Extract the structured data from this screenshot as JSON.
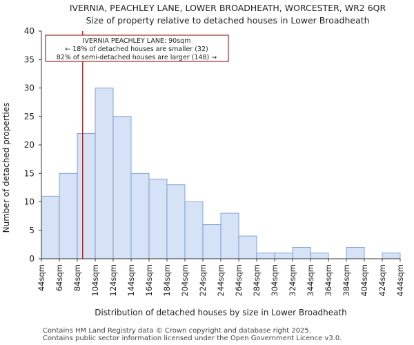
{
  "chart_data": {
    "type": "bar",
    "title": "IVERNIA, PEACHLEY LANE, LOWER BROADHEATH, WORCESTER, WR2 6QR",
    "subtitle": "Size of property relative to detached houses in Lower Broadheath",
    "xlabel": "Distribution of detached houses by size in Lower Broadheath",
    "ylabel": "Number of detached properties",
    "bin_edges": [
      44,
      64,
      84,
      104,
      124,
      144,
      164,
      184,
      204,
      224,
      244,
      264,
      284,
      304,
      324,
      344,
      364,
      384,
      404,
      424,
      444
    ],
    "tick_labels": [
      "44sqm",
      "64sqm",
      "84sqm",
      "104sqm",
      "124sqm",
      "144sqm",
      "164sqm",
      "184sqm",
      "204sqm",
      "224sqm",
      "244sqm",
      "264sqm",
      "284sqm",
      "304sqm",
      "324sqm",
      "344sqm",
      "364sqm",
      "384sqm",
      "404sqm",
      "424sqm",
      "444sqm"
    ],
    "values": [
      11,
      15,
      22,
      30,
      25,
      15,
      14,
      13,
      10,
      6,
      8,
      4,
      1,
      1,
      2,
      1,
      0,
      2,
      0,
      1
    ],
    "ylim": [
      0,
      40
    ],
    "yticks": [
      0,
      5,
      10,
      15,
      20,
      25,
      30,
      35,
      40
    ],
    "bar_color": "#d6e2f5",
    "bar_edge_color": "#6e8fc9",
    "marker": {
      "value": 90,
      "color": "#8b0000"
    },
    "annotation": {
      "lines": [
        "IVERNIA PEACHLEY LANE: 90sqm",
        "← 18% of detached houses are smaller (32)",
        "82% of semi-detached houses are larger (148) →"
      ],
      "border_color": "#8b0000"
    }
  },
  "footer": {
    "line1": "Contains HM Land Registry data © Crown copyright and database right 2025.",
    "line2": "Contains public sector information licensed under the Open Government Licence v3.0."
  }
}
